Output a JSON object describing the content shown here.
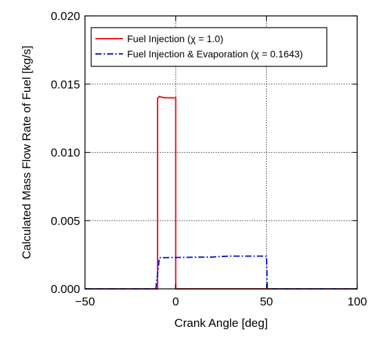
{
  "chart_data": {
    "type": "line",
    "xlabel": "Crank Angle [deg]",
    "ylabel": "Calculated Mass Flow Rate of Fuel [kg/s]",
    "xlim": [
      -50,
      100
    ],
    "ylim": [
      0,
      0.02
    ],
    "x_ticks": [
      -50,
      0,
      50,
      100
    ],
    "x_tick_labels": [
      "−50",
      "0",
      "50",
      "100"
    ],
    "y_ticks": [
      0,
      0.005,
      0.01,
      0.015,
      0.02
    ],
    "y_tick_labels": [
      "0.000",
      "0.005",
      "0.010",
      "0.015",
      "0.020"
    ],
    "grid": true,
    "legend_position": "top",
    "series": [
      {
        "name": "Fuel Injection (χ = 1.0)",
        "color": "#e8181f",
        "dash": "solid",
        "x": [
          -50,
          -10,
          -10,
          -9,
          -8,
          -6,
          -2,
          0,
          0,
          100
        ],
        "y": [
          0,
          0,
          0.01395,
          0.0141,
          0.01405,
          0.014,
          0.014,
          0.014,
          0,
          0
        ]
      },
      {
        "name": "Fuel Injection & Evaporation (χ = 0.1643)",
        "color": "#1020c8",
        "dash": "dashdot",
        "x": [
          -50,
          -11,
          -10,
          -9,
          0,
          10,
          20,
          25,
          30,
          40,
          50,
          50.5,
          100
        ],
        "y": [
          0,
          0,
          0.0011,
          0.00228,
          0.0023,
          0.00232,
          0.00233,
          0.00237,
          0.0024,
          0.0024,
          0.0024,
          0,
          0
        ]
      }
    ]
  }
}
